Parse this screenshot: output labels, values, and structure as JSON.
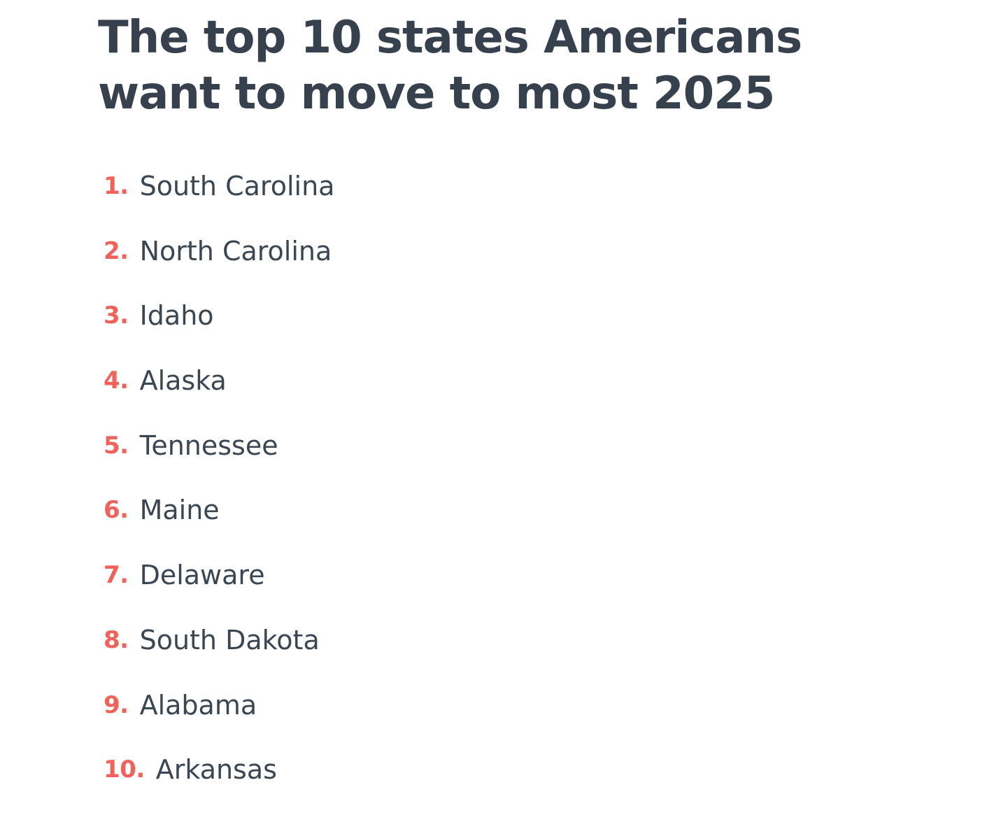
{
  "title": "The top 10 states Americans want to move to most 2025",
  "colors": {
    "title": "#36414d",
    "rank": "#f0625a",
    "name": "#3b4653",
    "background": "#ffffff"
  },
  "items": [
    {
      "rank": "1.",
      "name": "South Carolina"
    },
    {
      "rank": "2.",
      "name": "North Carolina"
    },
    {
      "rank": "3.",
      "name": "Idaho"
    },
    {
      "rank": "4.",
      "name": "Alaska"
    },
    {
      "rank": "5.",
      "name": "Tennessee"
    },
    {
      "rank": "6.",
      "name": "Maine"
    },
    {
      "rank": "7.",
      "name": "Delaware"
    },
    {
      "rank": "8.",
      "name": "South Dakota"
    },
    {
      "rank": "9.",
      "name": "Alabama"
    },
    {
      "rank": "10.",
      "name": "Arkansas"
    }
  ]
}
